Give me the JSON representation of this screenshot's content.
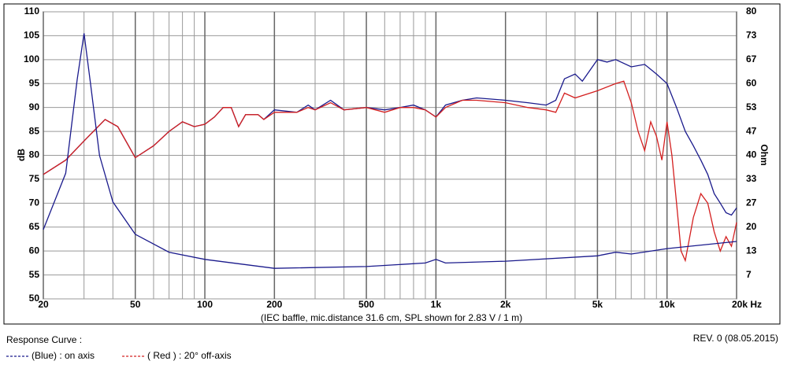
{
  "chart_data": {
    "type": "line",
    "ylabel": "dB",
    "y2label": "Ohm",
    "caption": "(IEC baffle, mic.distance 31.6 cm, SPL shown for 2.83 V / 1 m)",
    "footer_left": "Response Curve :",
    "footer_right": "REV. 0 (08.05.2015)",
    "xscale": "log",
    "grid": true,
    "xlim": [
      20,
      20000
    ],
    "xticks": [
      20,
      50,
      100,
      200,
      500,
      {
        "value": 1000,
        "label": "1k"
      },
      {
        "value": 2000,
        "label": "2k"
      },
      {
        "value": 5000,
        "label": "5k"
      },
      {
        "value": 10000,
        "label": "10k"
      },
      {
        "value": 20000,
        "label": "20k Hz"
      }
    ],
    "xminor_ticks": [
      30,
      40,
      60,
      70,
      80,
      90,
      300,
      400,
      600,
      700,
      800,
      900,
      3000,
      4000,
      6000,
      7000,
      8000,
      9000
    ],
    "ylim": [
      50,
      110
    ],
    "yticks": [
      50,
      55,
      60,
      65,
      70,
      75,
      80,
      85,
      90,
      95,
      100,
      105,
      110
    ],
    "y2lim": [
      0,
      80
    ],
    "y2ticks": [
      {
        "value": 6.667,
        "label": "7"
      },
      {
        "value": 13.333,
        "label": "13"
      },
      20,
      {
        "value": 26.667,
        "label": "27"
      },
      {
        "value": 33.333,
        "label": "33"
      },
      40,
      {
        "value": 46.667,
        "label": "47"
      },
      {
        "value": 53.333,
        "label": "53"
      },
      60,
      {
        "value": 66.667,
        "label": "67"
      },
      {
        "value": 73.333,
        "label": "73"
      },
      80
    ],
    "series": [
      {
        "name": "(Blue) : on axis",
        "color": "#1a1a8c",
        "x": [
          20,
          25,
          30,
          37,
          42,
          50,
          60,
          70,
          80,
          90,
          100,
          110,
          120,
          130,
          140,
          150,
          170,
          180,
          200,
          250,
          280,
          300,
          350,
          400,
          500,
          600,
          700,
          800,
          900,
          1000,
          1100,
          1300,
          1500,
          2000,
          2500,
          3000,
          3300,
          3600,
          4000,
          4300,
          5000,
          5500,
          6000,
          7000,
          8000,
          9000,
          10000,
          11000,
          12000,
          13000,
          14000,
          15000,
          16000,
          17000,
          18000,
          19000,
          20000
        ],
        "values": [
          76,
          79,
          83,
          87.5,
          86,
          79.5,
          82,
          85,
          87,
          86,
          86.5,
          88,
          90,
          90,
          86,
          88.5,
          88.5,
          87.5,
          89.5,
          89,
          90.5,
          89.5,
          91.5,
          89.5,
          90,
          89.5,
          90,
          90.5,
          89.5,
          88,
          90.5,
          91.5,
          92,
          91.5,
          91,
          90.5,
          91.5,
          96,
          97,
          95.5,
          100,
          99.5,
          100,
          98.5,
          99,
          97,
          95,
          90,
          85,
          82,
          79,
          76,
          72,
          70,
          68,
          67.5,
          69
        ]
      },
      {
        "name": "( Red ) : 20° off-axis",
        "color": "#d42020",
        "x": [
          20,
          25,
          30,
          37,
          42,
          50,
          60,
          70,
          80,
          90,
          100,
          110,
          120,
          130,
          140,
          150,
          170,
          180,
          200,
          250,
          280,
          300,
          350,
          400,
          500,
          600,
          700,
          800,
          900,
          1000,
          1100,
          1300,
          1500,
          2000,
          2500,
          3000,
          3300,
          3600,
          4000,
          5000,
          6000,
          6500,
          7000,
          7500,
          8000,
          8500,
          9000,
          9500,
          10000,
          10500,
          11000,
          11500,
          12000,
          13000,
          14000,
          15000,
          16000,
          17000,
          18000,
          19000,
          20000
        ],
        "values": [
          76,
          79,
          83,
          87.5,
          86,
          79.5,
          82,
          85,
          87,
          86,
          86.5,
          88,
          90,
          90,
          86,
          88.5,
          88.5,
          87.5,
          89,
          89,
          90,
          89.5,
          91,
          89.5,
          90,
          89,
          90,
          90,
          89.5,
          88,
          90,
          91.5,
          91.5,
          91,
          90,
          89.5,
          89,
          93,
          92,
          93.5,
          95,
          95.5,
          91,
          85,
          81,
          87,
          84,
          79,
          87,
          80,
          70,
          60,
          58,
          67,
          72,
          70,
          64,
          60,
          63,
          61,
          66
        ]
      },
      {
        "axis": "y2",
        "color": "#1a1a8c",
        "x": [
          20,
          25,
          28,
          30,
          32,
          35,
          40,
          50,
          70,
          100,
          200,
          500,
          900,
          1000,
          1100,
          2000,
          5000,
          6000,
          7000,
          10000,
          20000
        ],
        "values": [
          19.3,
          35,
          61,
          74,
          60,
          40,
          27,
          18,
          13,
          11,
          8.5,
          9,
          10,
          11,
          10,
          10.5,
          12,
          13,
          12.5,
          14,
          16
        ]
      }
    ]
  }
}
